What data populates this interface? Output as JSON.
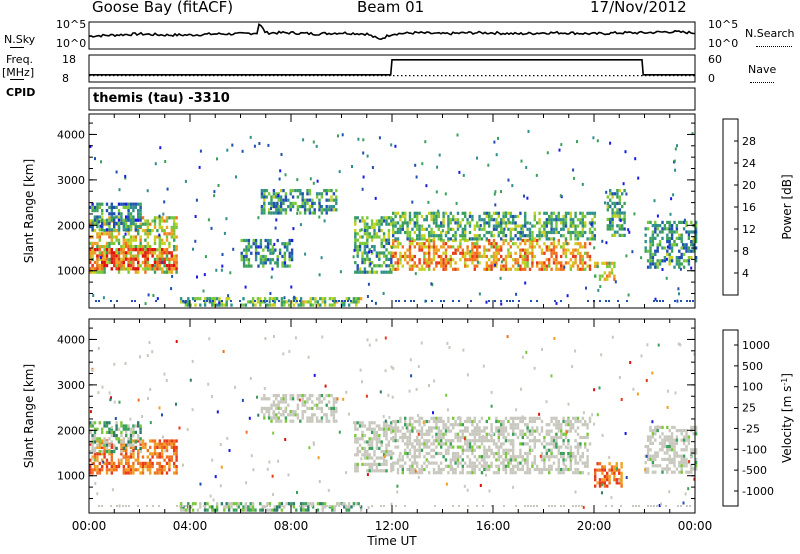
{
  "header": {
    "station": "Goose Bay (fitACF)",
    "beam": "Beam 01",
    "date": "17/Nov/2012"
  },
  "top_panels": {
    "nsky_label": "N.Sky",
    "nsky_ticks": [
      "10^5",
      "10^0"
    ],
    "nsearch_label": "N.Search",
    "nsearch_ticks": [
      "10^5",
      "10^0"
    ],
    "freq_label": "Freq.",
    "freq_unit": "[MHz]",
    "freq_ticks": [
      "18",
      "8"
    ],
    "nave_label": "Nave",
    "nave_ticks": [
      "60",
      "0"
    ],
    "cpid_label": "CPID",
    "cpid_text": "themis (tau) -3310"
  },
  "chart_data": [
    {
      "type": "heatmap",
      "name": "power",
      "ylabel": "Slant Range [km]",
      "xlabel": "",
      "ytick_labels": [
        "1000",
        "2000",
        "3000",
        "4000"
      ],
      "xlim": [
        0,
        24
      ],
      "ylim": [
        180,
        4450
      ],
      "colorbar": {
        "label": "Power [dB]",
        "ticks": [
          "4",
          "8",
          "12",
          "16",
          "20",
          "24",
          "28"
        ],
        "colors": [
          "#1a1ae6",
          "#1f4fb0",
          "#2f8f8a",
          "#3aa05a",
          "#7ac83a",
          "#c8d020",
          "#f0a020",
          "#f07020",
          "#e83a1a",
          "#e01010"
        ]
      },
      "regions": [
        {
          "t": [
            0.0,
            3.5
          ],
          "r": [
            1000,
            2200
          ],
          "level": 0.55
        },
        {
          "t": [
            0.0,
            3.5
          ],
          "r": [
            1050,
            1500
          ],
          "level": 0.85
        },
        {
          "t": [
            0.0,
            2.0
          ],
          "r": [
            1900,
            2500
          ],
          "level": 0.25
        },
        {
          "t": [
            3.6,
            10.8
          ],
          "r": [
            240,
            420
          ],
          "level": 0.4
        },
        {
          "t": [
            6.8,
            9.8
          ],
          "r": [
            2300,
            2800
          ],
          "level": 0.3
        },
        {
          "t": [
            6.0,
            8.0
          ],
          "r": [
            1100,
            1700
          ],
          "level": 0.25
        },
        {
          "t": [
            10.5,
            12.0
          ],
          "r": [
            1000,
            2200
          ],
          "level": 0.35
        },
        {
          "t": [
            12.0,
            19.8
          ],
          "r": [
            1050,
            1700
          ],
          "level": 0.7
        },
        {
          "t": [
            12.0,
            20.0
          ],
          "r": [
            1700,
            2300
          ],
          "level": 0.35
        },
        {
          "t": [
            20.0,
            20.8
          ],
          "r": [
            800,
            1200
          ],
          "level": 0.55
        },
        {
          "t": [
            20.5,
            21.2
          ],
          "r": [
            1800,
            2800
          ],
          "level": 0.35
        },
        {
          "t": [
            22.0,
            24.0
          ],
          "r": [
            1100,
            2100
          ],
          "level": 0.3
        }
      ]
    },
    {
      "type": "heatmap",
      "name": "velocity",
      "ylabel": "Slant Range [km]",
      "xlabel": "Time UT",
      "ytick_labels": [
        "1000",
        "2000",
        "3000",
        "4000"
      ],
      "xtick_labels": [
        "00:00",
        "04:00",
        "08:00",
        "12:00",
        "16:00",
        "20:00",
        "00:00"
      ],
      "xticks": [
        0,
        4,
        8,
        12,
        16,
        20,
        24
      ],
      "xlim": [
        0,
        24
      ],
      "ylim": [
        180,
        4450
      ],
      "colorbar": {
        "label": "Velocity [m s",
        "label_sup": "-1",
        "label_end": "]",
        "ticks": [
          "1000",
          "500",
          "100",
          "25",
          "-25",
          "-100",
          "-500",
          "-1000"
        ],
        "colors": [
          "#1a1ae6",
          "#1f4fb0",
          "#2f7a6a",
          "#3aa05a",
          "#7ac83a",
          "#c8c8be",
          "#c8c8be",
          "#f0a020",
          "#f07020",
          "#e83a1a",
          "#e01010"
        ]
      },
      "regions": [
        {
          "t": [
            0.0,
            3.5
          ],
          "r": [
            1050,
            1800
          ],
          "level": 0.85
        },
        {
          "t": [
            0.0,
            2.0
          ],
          "r": [
            1500,
            2200
          ],
          "level": 0.25
        },
        {
          "t": [
            3.6,
            10.8
          ],
          "r": [
            240,
            420
          ],
          "level": 0.45
        },
        {
          "t": [
            6.8,
            9.8
          ],
          "r": [
            2200,
            2800
          ],
          "level": 0.5
        },
        {
          "t": [
            10.5,
            12.0
          ],
          "r": [
            1100,
            2200
          ],
          "level": 0.5
        },
        {
          "t": [
            12.0,
            19.8
          ],
          "r": [
            1050,
            2300
          ],
          "level": 0.5
        },
        {
          "t": [
            20.0,
            21.2
          ],
          "r": [
            800,
            1300
          ],
          "level": 0.85
        },
        {
          "t": [
            22.0,
            24.0
          ],
          "r": [
            1100,
            2100
          ],
          "level": 0.5
        }
      ]
    },
    {
      "type": "line",
      "name": "nsky",
      "x": [
        0,
        1,
        2,
        3,
        4,
        5,
        6,
        6.7,
        6.75,
        7,
        8,
        9,
        10,
        11,
        11.5,
        12,
        13,
        14,
        15,
        16,
        17,
        18,
        19,
        20,
        21,
        22,
        23,
        24
      ],
      "y": [
        0.45,
        0.5,
        0.55,
        0.5,
        0.5,
        0.55,
        0.55,
        0.6,
        1.0,
        0.6,
        0.6,
        0.55,
        0.6,
        0.55,
        0.3,
        0.55,
        0.6,
        0.55,
        0.6,
        0.6,
        0.55,
        0.6,
        0.6,
        0.55,
        0.6,
        0.6,
        0.65,
        0.6
      ],
      "ylim": [
        0,
        1
      ]
    },
    {
      "type": "line",
      "name": "frequency",
      "x": [
        0,
        11.95,
        12.0,
        21.9,
        21.95,
        24
      ],
      "y": [
        10.5,
        10.5,
        16.5,
        16.5,
        10.5,
        10.5
      ],
      "ylim": [
        8,
        18
      ]
    },
    {
      "type": "line",
      "name": "nave",
      "x": [
        0,
        24
      ],
      "y": [
        13,
        13
      ],
      "ylim": [
        0,
        60
      ]
    }
  ]
}
